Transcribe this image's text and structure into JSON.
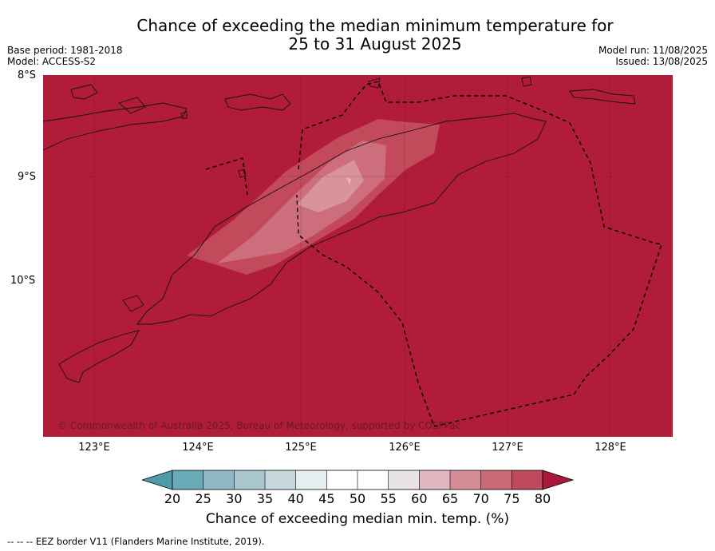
{
  "title_line1": "Chance of exceeding the median minimum temperature for",
  "title_line2": "25 to 31 August 2025",
  "base_period": "Base period: 1981-2018",
  "model": "Model: ACCESS-S2",
  "model_run": "Model run: 11/08/2025",
  "issued": "Issued: 13/08/2025",
  "lat_labels": [
    "8°S",
    "9°S",
    "10°S"
  ],
  "lon_labels": [
    "123°E",
    "124°E",
    "125°E",
    "126°E",
    "127°E",
    "128°E"
  ],
  "copyright": "© Commonwealth of Australia 2025, Bureau of Meteorology, supported by COSPPac",
  "colorbar": {
    "label": "Chance of exceeding median min. temp. (%)",
    "ticks": [
      "20",
      "25",
      "30",
      "35",
      "40",
      "45",
      "50",
      "55",
      "60",
      "65",
      "70",
      "75",
      "80"
    ],
    "under_color": "#4e9bab",
    "over_color": "#a8193a",
    "bin_colors": [
      "#6aaab8",
      "#8db8c3",
      "#a9c7cd",
      "#c7d8dc",
      "#e4eef0",
      "#ffffff",
      "#ffffff",
      "#e8e4e5",
      "#e1b7bf",
      "#d58d98",
      "#c96a76",
      "#bf4a5b"
    ]
  },
  "map_colors": {
    "background": "#b11c39",
    "level_75": "#c24a5b",
    "level_70": "#cc6e7b",
    "level_65": "#d8939c"
  },
  "footnote": "--  --  -- EEZ border V11 (Flanders Marine Institute, 2019)."
}
